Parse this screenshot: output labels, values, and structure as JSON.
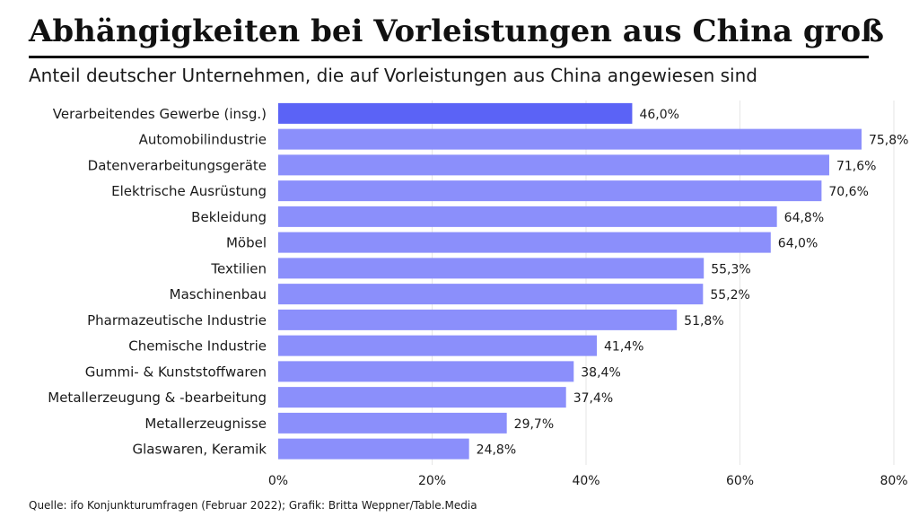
{
  "header": {
    "title": "Abhängigkeiten bei Vorleistungen aus China groß",
    "subtitle": "Anteil deutscher Unternehmen, die auf Vorleistungen aus China angewiesen sind"
  },
  "footer": {
    "source": "Quelle: ifo Konjunkturumfragen (Februar 2022); Grafik: Britta Weppner/Table.Media"
  },
  "colors": {
    "highlight_bar": "#5b63f6",
    "bar": "#8b8ffb",
    "grid": "#e6e6e6",
    "text": "#1a1a1a"
  },
  "chart_data": {
    "type": "bar",
    "orientation": "horizontal",
    "title": "",
    "xlabel": "",
    "ylabel": "",
    "xlim": [
      0,
      80
    ],
    "grid": true,
    "categories": [
      "Verarbeitendes Gewerbe (insg.)",
      "Automobilindustrie",
      "Datenverarbeitungsgeräte",
      "Elektrische Ausrüstung",
      "Bekleidung",
      "Möbel",
      "Textilien",
      "Maschinenbau",
      "Pharmazeutische Industrie",
      "Chemische Industrie",
      "Gummi- & Kunststoffwaren",
      "Metallerzeugung & -bearbeitung",
      "Metallerzeugnisse",
      "Glaswaren, Keramik"
    ],
    "values": [
      46.0,
      75.8,
      71.6,
      70.6,
      64.8,
      64.0,
      55.3,
      55.2,
      51.8,
      41.4,
      38.4,
      37.4,
      29.7,
      24.8
    ],
    "value_labels": [
      "46,0%",
      "75,8%",
      "71,6%",
      "70,6%",
      "64,8%",
      "64,0%",
      "55,3%",
      "55,2%",
      "51,8%",
      "41,4%",
      "38,4%",
      "37,4%",
      "29,7%",
      "24,8%"
    ],
    "highlight_index": 0,
    "x_ticks": [
      {
        "value": 0,
        "label": "0%"
      },
      {
        "value": 20,
        "label": "20%"
      },
      {
        "value": 40,
        "label": "40%"
      },
      {
        "value": 60,
        "label": "60%"
      },
      {
        "value": 80,
        "label": "80%"
      }
    ]
  }
}
